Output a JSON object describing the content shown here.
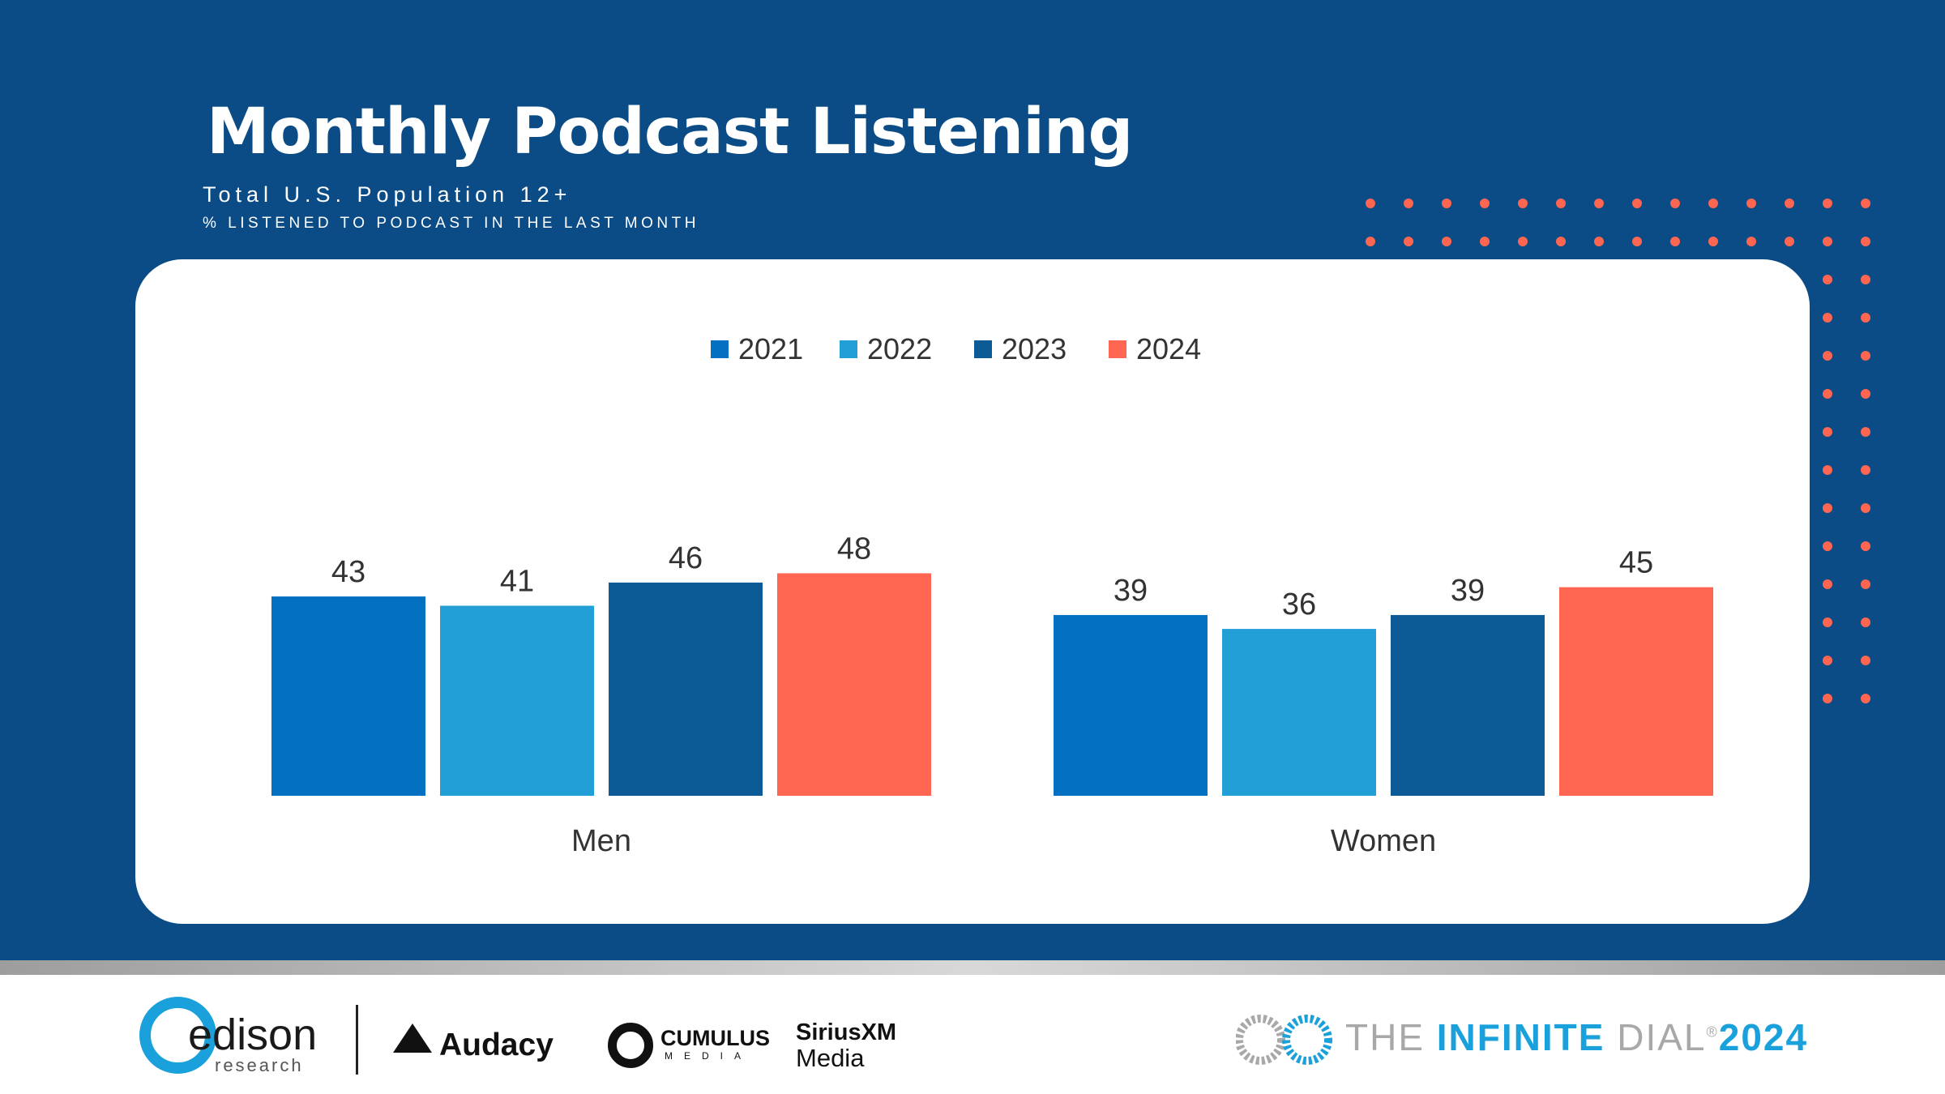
{
  "header": {
    "title": "Monthly Podcast Listening",
    "subtitle": "Total U.S. Population 12+",
    "note": "% LISTENED TO PODCAST IN THE LAST MONTH"
  },
  "colors": {
    "background": "#0b4c86",
    "dots": "#ff6651",
    "s2021": "#0470c1",
    "s2022": "#239fd8",
    "s2023": "#0c5b97",
    "s2024": "#ff6651"
  },
  "chart_data": {
    "type": "bar",
    "title": "",
    "xlabel": "",
    "ylabel": "",
    "ylim": [
      0,
      60
    ],
    "grid": false,
    "legend_position": "top-center",
    "categories": [
      "Men",
      "Women"
    ],
    "series": [
      {
        "name": "2021",
        "values": [
          43,
          39
        ],
        "color": "#0470c1"
      },
      {
        "name": "2022",
        "values": [
          41,
          36
        ],
        "color": "#239fd8"
      },
      {
        "name": "2023",
        "values": [
          46,
          39
        ],
        "color": "#0c5b97"
      },
      {
        "name": "2024",
        "values": [
          48,
          45
        ],
        "color": "#ff6651"
      }
    ]
  },
  "footer": {
    "edison": {
      "word": "edison",
      "sub": "research"
    },
    "audacy": "Audacy",
    "cumulus": {
      "word": "CUMULUS",
      "sub": "MEDIA"
    },
    "siriusxm": {
      "word": "SiriusXM",
      "sub": "Media"
    },
    "infinite_dial": {
      "the": "THE ",
      "infinite": "INFINITE",
      "dial": " DIAL",
      "reg": "®",
      "year": "2024"
    }
  }
}
